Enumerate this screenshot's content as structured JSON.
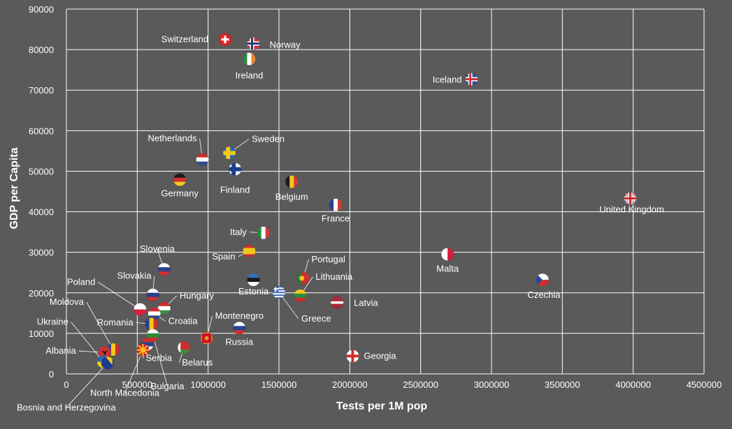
{
  "chart_data": {
    "type": "scatter",
    "title": "",
    "xlabel": "Tests per 1M pop",
    "ylabel": "GDP per Capita",
    "xlim": [
      0,
      4500000
    ],
    "ylim": [
      0,
      90000
    ],
    "x_ticks": [
      {
        "value": 0,
        "label": "0"
      },
      {
        "value": 500000,
        "label": "500000"
      },
      {
        "value": 1000000,
        "label": "1000000"
      },
      {
        "value": 1500000,
        "label": "1500000"
      },
      {
        "value": 2000000,
        "label": "2000000"
      },
      {
        "value": 2500000,
        "label": "2500000"
      },
      {
        "value": 3000000,
        "label": "3000000"
      },
      {
        "value": 3500000,
        "label": "3500000"
      },
      {
        "value": 4000000,
        "label": "4000000"
      },
      {
        "value": 4500000,
        "label": "4500000"
      }
    ],
    "y_ticks": [
      {
        "value": 0,
        "label": "0"
      },
      {
        "value": 10000,
        "label": "10000"
      },
      {
        "value": 20000,
        "label": "20000"
      },
      {
        "value": 30000,
        "label": "30000"
      },
      {
        "value": 40000,
        "label": "40000"
      },
      {
        "value": 50000,
        "label": "50000"
      },
      {
        "value": 60000,
        "label": "60000"
      },
      {
        "value": 70000,
        "label": "70000"
      },
      {
        "value": 80000,
        "label": "80000"
      },
      {
        "value": 90000,
        "label": "90000"
      }
    ],
    "grid": true,
    "points": [
      {
        "label": "Switzerland",
        "x": 1120000,
        "y": 82500,
        "flag": "switzerland"
      },
      {
        "label": "Norway",
        "x": 1320000,
        "y": 81500,
        "flag": "norway"
      },
      {
        "label": "Ireland",
        "x": 1290000,
        "y": 77700,
        "flag": "ireland"
      },
      {
        "label": "Iceland",
        "x": 2860000,
        "y": 72700,
        "flag": "iceland"
      },
      {
        "label": "Netherlands",
        "x": 960000,
        "y": 52900,
        "flag": "netherlands"
      },
      {
        "label": "Sweden",
        "x": 1150000,
        "y": 54500,
        "flag": "sweden"
      },
      {
        "label": "Finland",
        "x": 1190000,
        "y": 50500,
        "flag": "finland"
      },
      {
        "label": "Germany",
        "x": 800000,
        "y": 47900,
        "flag": "germany"
      },
      {
        "label": "Belgium",
        "x": 1590000,
        "y": 47400,
        "flag": "belgium"
      },
      {
        "label": "France",
        "x": 1900000,
        "y": 41700,
        "flag": "france"
      },
      {
        "label": "United Kingdom",
        "x": 3980000,
        "y": 43300,
        "flag": "uk"
      },
      {
        "label": "Italy",
        "x": 1390000,
        "y": 34800,
        "flag": "italy"
      },
      {
        "label": "Spain",
        "x": 1290000,
        "y": 30300,
        "flag": "spain"
      },
      {
        "label": "Malta",
        "x": 2690000,
        "y": 29500,
        "flag": "malta"
      },
      {
        "label": "Slovenia",
        "x": 690000,
        "y": 25800,
        "flag": "slovenia"
      },
      {
        "label": "Portugal",
        "x": 1670000,
        "y": 23600,
        "flag": "portugal"
      },
      {
        "label": "Estonia",
        "x": 1320000,
        "y": 23200,
        "flag": "estonia"
      },
      {
        "label": "Czechia",
        "x": 3360000,
        "y": 23200,
        "flag": "czechia"
      },
      {
        "label": "Lithuania",
        "x": 1650000,
        "y": 19300,
        "flag": "lithuania"
      },
      {
        "label": "Greece",
        "x": 1500000,
        "y": 20100,
        "flag": "greece"
      },
      {
        "label": "Slovakia",
        "x": 610000,
        "y": 19500,
        "flag": "slovakia"
      },
      {
        "label": "Hungary",
        "x": 690000,
        "y": 16200,
        "flag": "hungary"
      },
      {
        "label": "Latvia",
        "x": 1910000,
        "y": 17600,
        "flag": "latvia"
      },
      {
        "label": "Poland",
        "x": 520000,
        "y": 15900,
        "flag": "poland"
      },
      {
        "label": "Croatia",
        "x": 620000,
        "y": 14900,
        "flag": "croatia"
      },
      {
        "label": "Romania",
        "x": 600000,
        "y": 12300,
        "flag": "romania"
      },
      {
        "label": "Russia",
        "x": 1220000,
        "y": 11300,
        "flag": "russia"
      },
      {
        "label": "Montenegro",
        "x": 990000,
        "y": 8800,
        "flag": "montenegro"
      },
      {
        "label": "Bulgaria",
        "x": 610000,
        "y": 9500,
        "flag": "bulgaria"
      },
      {
        "label": "Serbia",
        "x": 570000,
        "y": 7300,
        "flag": "serbia"
      },
      {
        "label": "Belarus",
        "x": 830000,
        "y": 6500,
        "flag": "belarus"
      },
      {
        "label": "North Macedonia",
        "x": 540000,
        "y": 5900,
        "flag": "north-macedonia"
      },
      {
        "label": "Moldova",
        "x": 330000,
        "y": 6000,
        "flag": "moldova"
      },
      {
        "label": "Albania",
        "x": 270000,
        "y": 5300,
        "flag": "albania"
      },
      {
        "label": "Ukraine",
        "x": 260000,
        "y": 3000,
        "flag": "ukraine"
      },
      {
        "label": "Bosnia and Herzegovina",
        "x": 290000,
        "y": 2700,
        "flag": "bosnia"
      },
      {
        "label": "Georgia",
        "x": 2020000,
        "y": 4400,
        "flag": "georgia"
      }
    ]
  },
  "colors": {
    "background": "#5a5a5a",
    "grid": "#ffffff",
    "text": "#ffffff"
  }
}
